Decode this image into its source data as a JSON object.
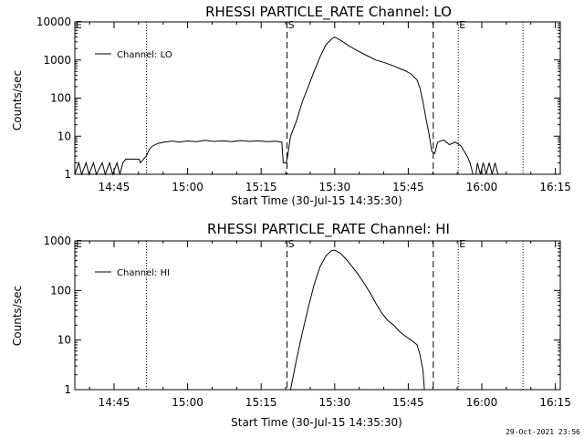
{
  "chart_data": [
    {
      "type": "line",
      "title": "RHESSI PARTICLE_RATE Channel: LO",
      "xlabel": "Start Time (30-Jul-15 14:35:30)",
      "ylabel": "Counts/sec",
      "yscale": "log",
      "ylim": [
        1,
        10000
      ],
      "xlim": [
        14.6167,
        16.2667
      ],
      "x_ticks": [
        {
          "t": 14.75,
          "label": "14:45"
        },
        {
          "t": 15.0,
          "label": "15:00"
        },
        {
          "t": 15.25,
          "label": "15:15"
        },
        {
          "t": 15.5,
          "label": "15:30"
        },
        {
          "t": 15.75,
          "label": "15:45"
        },
        {
          "t": 16.0,
          "label": "16:00"
        },
        {
          "t": 16.25,
          "label": "16:15"
        }
      ],
      "y_ticks": [
        {
          "v": 1,
          "label": "1"
        },
        {
          "v": 10,
          "label": "10"
        },
        {
          "v": 100,
          "label": "100"
        },
        {
          "v": 1000,
          "label": "1000"
        },
        {
          "v": 10000,
          "label": "10000"
        }
      ],
      "legend": {
        "label": "Channel: LO",
        "placement": "top-left"
      },
      "markers": [
        {
          "t": 14.86,
          "style": "dotted",
          "label": ""
        },
        {
          "t": 15.338,
          "style": "dashed",
          "label": "S"
        },
        {
          "t": 15.835,
          "style": "dashed",
          "label": ""
        },
        {
          "t": 15.92,
          "style": "dotted",
          "label": "E"
        },
        {
          "t": 16.14,
          "style": "dotted",
          "label": ""
        }
      ],
      "edge_labels": [
        {
          "label": "E",
          "t": 14.6167
        }
      ],
      "series": [
        {
          "name": "Channel: LO",
          "points": [
            [
              14.617,
              1
            ],
            [
              14.63,
              2
            ],
            [
              14.64,
              1
            ],
            [
              14.655,
              2
            ],
            [
              14.665,
              1
            ],
            [
              14.68,
              2
            ],
            [
              14.69,
              1
            ],
            [
              14.71,
              2
            ],
            [
              14.72,
              1
            ],
            [
              14.735,
              2
            ],
            [
              14.745,
              1
            ],
            [
              14.76,
              2
            ],
            [
              14.77,
              1
            ],
            [
              14.78,
              2
            ],
            [
              14.79,
              2.5
            ],
            [
              14.8,
              2.5
            ],
            [
              14.82,
              2.5
            ],
            [
              14.835,
              2.5
            ],
            [
              14.84,
              2
            ],
            [
              14.85,
              2.5
            ],
            [
              14.86,
              3
            ],
            [
              14.87,
              4.5
            ],
            [
              14.88,
              5.5
            ],
            [
              14.9,
              6.5
            ],
            [
              14.92,
              7
            ],
            [
              14.95,
              7.5
            ],
            [
              14.97,
              7
            ],
            [
              15.0,
              7.5
            ],
            [
              15.03,
              7.2
            ],
            [
              15.06,
              7.8
            ],
            [
              15.09,
              7.3
            ],
            [
              15.12,
              7.6
            ],
            [
              15.15,
              7.2
            ],
            [
              15.18,
              7.7
            ],
            [
              15.21,
              7.3
            ],
            [
              15.24,
              7.6
            ],
            [
              15.27,
              7.2
            ],
            [
              15.3,
              7.4
            ],
            [
              15.32,
              7
            ],
            [
              15.325,
              2
            ],
            [
              15.335,
              2
            ],
            [
              15.34,
              3
            ],
            [
              15.35,
              10
            ],
            [
              15.37,
              25
            ],
            [
              15.39,
              80
            ],
            [
              15.41,
              200
            ],
            [
              15.43,
              500
            ],
            [
              15.45,
              1200
            ],
            [
              15.47,
              2500
            ],
            [
              15.49,
              3600
            ],
            [
              15.5,
              4000
            ],
            [
              15.52,
              3300
            ],
            [
              15.55,
              2300
            ],
            [
              15.58,
              1700
            ],
            [
              15.61,
              1300
            ],
            [
              15.64,
              1000
            ],
            [
              15.67,
              850
            ],
            [
              15.7,
              700
            ],
            [
              15.72,
              600
            ],
            [
              15.74,
              520
            ],
            [
              15.76,
              430
            ],
            [
              15.78,
              300
            ],
            [
              15.79,
              180
            ],
            [
              15.8,
              80
            ],
            [
              15.81,
              30
            ],
            [
              15.82,
              12
            ],
            [
              15.83,
              4
            ],
            [
              15.84,
              3.5
            ],
            [
              15.85,
              7
            ],
            [
              15.87,
              8
            ],
            [
              15.89,
              6
            ],
            [
              15.91,
              7
            ],
            [
              15.93,
              5.5
            ],
            [
              15.94,
              4
            ],
            [
              15.95,
              3
            ],
            [
              15.96,
              2
            ],
            [
              15.97,
              1
            ],
            [
              15.98,
              1
            ],
            [
              15.985,
              2
            ],
            [
              15.995,
              1
            ],
            [
              16.005,
              2
            ],
            [
              16.015,
              1
            ],
            [
              16.025,
              2
            ],
            [
              16.035,
              1
            ],
            [
              16.045,
              2
            ],
            [
              16.055,
              1
            ],
            [
              16.07,
              1
            ],
            [
              16.1,
              1
            ],
            [
              16.14,
              1
            ],
            [
              16.2,
              1
            ],
            [
              16.267,
              1
            ]
          ]
        }
      ]
    },
    {
      "type": "line",
      "title": "RHESSI PARTICLE_RATE Channel: HI",
      "xlabel": "Start Time (30-Jul-15 14:35:30)",
      "ylabel": "Counts/sec",
      "yscale": "log",
      "ylim": [
        1,
        1000
      ],
      "xlim": [
        14.6167,
        16.2667
      ],
      "x_ticks": [
        {
          "t": 14.75,
          "label": "14:45"
        },
        {
          "t": 15.0,
          "label": "15:00"
        },
        {
          "t": 15.25,
          "label": "15:15"
        },
        {
          "t": 15.5,
          "label": "15:30"
        },
        {
          "t": 15.75,
          "label": "15:45"
        },
        {
          "t": 16.0,
          "label": "16:00"
        },
        {
          "t": 16.25,
          "label": "16:15"
        }
      ],
      "y_ticks": [
        {
          "v": 1,
          "label": "1"
        },
        {
          "v": 10,
          "label": "10"
        },
        {
          "v": 100,
          "label": "100"
        },
        {
          "v": 1000,
          "label": "1000"
        }
      ],
      "legend": {
        "label": "Channel: HI",
        "placement": "top-left"
      },
      "markers": [
        {
          "t": 14.86,
          "style": "dotted",
          "label": ""
        },
        {
          "t": 15.338,
          "style": "dashed",
          "label": "S"
        },
        {
          "t": 15.835,
          "style": "dashed",
          "label": ""
        },
        {
          "t": 15.92,
          "style": "dotted",
          "label": "E"
        },
        {
          "t": 16.14,
          "style": "dotted",
          "label": ""
        }
      ],
      "edge_labels": [
        {
          "label": "E",
          "t": 14.6167
        }
      ],
      "series": [
        {
          "name": "Channel: HI",
          "points": [
            [
              15.35,
              1
            ],
            [
              15.37,
              4
            ],
            [
              15.39,
              14
            ],
            [
              15.41,
              45
            ],
            [
              15.43,
              130
            ],
            [
              15.45,
              300
            ],
            [
              15.47,
              500
            ],
            [
              15.49,
              640
            ],
            [
              15.5,
              650
            ],
            [
              15.52,
              560
            ],
            [
              15.54,
              420
            ],
            [
              15.56,
              300
            ],
            [
              15.58,
              210
            ],
            [
              15.6,
              140
            ],
            [
              15.62,
              90
            ],
            [
              15.64,
              55
            ],
            [
              15.66,
              35
            ],
            [
              15.68,
              25
            ],
            [
              15.7,
              20
            ],
            [
              15.72,
              15
            ],
            [
              15.74,
              12
            ],
            [
              15.76,
              10
            ],
            [
              15.78,
              8
            ],
            [
              15.79,
              5
            ],
            [
              15.8,
              2.5
            ],
            [
              15.805,
              1
            ]
          ]
        }
      ]
    }
  ],
  "footer": {
    "timestamp": "29-Oct-2021 23:56"
  }
}
